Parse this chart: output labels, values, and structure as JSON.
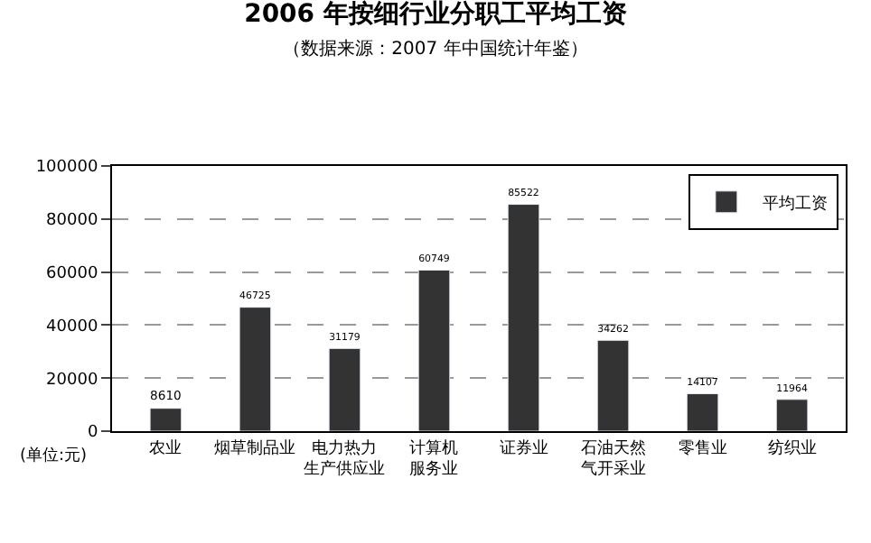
{
  "chart_data": {
    "type": "bar",
    "title": "2006 年按细行业分职工平均工资",
    "subtitle": "（数据来源：2007 年中国统计年鉴）",
    "categories": [
      "农业",
      "烟草制品业",
      "电力热力生产供应业",
      "计算机服务业",
      "证券业",
      "石油天然气开采业",
      "零售业",
      "纺织业"
    ],
    "series": [
      {
        "name": "平均工资",
        "color": "#333333",
        "values": [
          8610,
          46725,
          31179,
          60749,
          85522,
          34262,
          14107,
          11964
        ]
      }
    ],
    "ylim": [
      0,
      100000
    ],
    "yticks": [
      0,
      20000,
      40000,
      60000,
      80000,
      100000
    ],
    "grid": "y",
    "legend": "top right",
    "data_labels": true,
    "annotations": [
      "(单位:元)"
    ]
  }
}
